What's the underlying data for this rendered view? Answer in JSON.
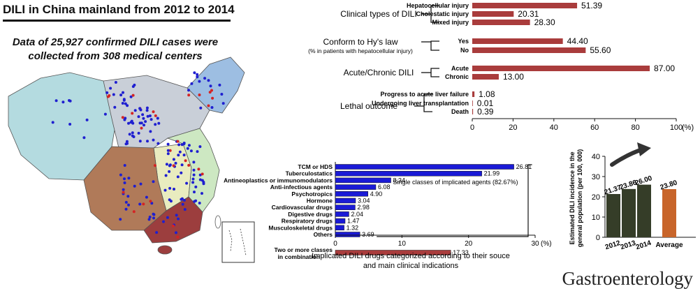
{
  "header": {
    "title": "DILI in China mainland from 2012 to 2014",
    "subtitle_line1": "Data of  25,927 confirmed DILI cases were",
    "subtitle_line2": "collected from 308 medical centers"
  },
  "journal": "Gastroenterology",
  "map": {
    "region_colors": {
      "northwest": "#b4dbe0",
      "north": "#c9cfd8",
      "northeast": "#9dbee2",
      "east": "#cde8c2",
      "southwest": "#b07a59",
      "south": "#9c3e3e",
      "central": "#e9ecbf"
    },
    "marker_colors": {
      "site": "#1f1fd0",
      "highlight": "#d42424"
    }
  },
  "chart_data": [
    {
      "type": "bar",
      "orientation": "horizontal",
      "bar_color": "#a93c3c",
      "xlim": [
        0,
        100
      ],
      "x_ticks": [
        "0",
        "20",
        "40",
        "60",
        "80",
        "100"
      ],
      "x_unit": "(%)",
      "groups": [
        {
          "label": "Clinical types of DILI",
          "bars": [
            {
              "label": "Hepatocellular injury",
              "value": 51.39,
              "value_label": "51.39"
            },
            {
              "label": "Cholestatic injury",
              "value": 20.31,
              "value_label": "20.31"
            },
            {
              "label": "Mixed injury",
              "value": 28.3,
              "value_label": "28.30"
            }
          ]
        },
        {
          "label": "Conform to Hy's law",
          "sublabel": "(% in patients with hepatocellular injury)",
          "bars": [
            {
              "label": "Yes",
              "value": 44.4,
              "value_label": "44.40"
            },
            {
              "label": "No",
              "value": 55.6,
              "value_label": "55.60"
            }
          ]
        },
        {
          "label": "Acute/Chronic DILI",
          "bars": [
            {
              "label": "Acute",
              "value": 87.0,
              "value_label": "87.00"
            },
            {
              "label": "Chronic",
              "value": 13.0,
              "value_label": "13.00"
            }
          ]
        },
        {
          "label": "Lethal outcome",
          "bars": [
            {
              "label": "Progress to acute liver failure",
              "value": 1.08,
              "value_label": "1.08"
            },
            {
              "label": "Undergoing liver transplantation",
              "value": 0.01,
              "value_label": "0.01"
            },
            {
              "label": "Death",
              "value": 0.39,
              "value_label": "0.39"
            }
          ]
        }
      ]
    },
    {
      "type": "bar",
      "orientation": "horizontal",
      "xlim": [
        0,
        30
      ],
      "x_ticks": [
        "0",
        "10",
        "20",
        "30"
      ],
      "x_unit": "(%)",
      "caption_line1": "Implicated DILI drugs categorized according to their souce",
      "caption_line2": "and main clinical indications",
      "bracket_label": "Single classes of implicated agents (82.67%)",
      "colors": {
        "single": "#1a1ad6",
        "combination": "#a93c3c"
      },
      "bars": [
        {
          "label": "TCM or HDS",
          "value": 26.81,
          "value_label": "26.81",
          "kind": "single"
        },
        {
          "label": "Tuberculostatics",
          "value": 21.99,
          "value_label": "21.99",
          "kind": "single"
        },
        {
          "label": "Antineoplastics or immunomodulators",
          "value": 8.34,
          "value_label": "8.34",
          "kind": "single"
        },
        {
          "label": "Anti-infectious agents",
          "value": 6.08,
          "value_label": "6.08",
          "kind": "single"
        },
        {
          "label": "Psychotropics",
          "value": 4.9,
          "value_label": "4.90",
          "kind": "single"
        },
        {
          "label": "Hormone",
          "value": 3.04,
          "value_label": "3.04",
          "kind": "single"
        },
        {
          "label": "Cardiovascular drugs",
          "value": 2.98,
          "value_label": "2.98",
          "kind": "single"
        },
        {
          "label": "Digestive drugs",
          "value": 2.04,
          "value_label": "2.04",
          "kind": "single"
        },
        {
          "label": "Respiratory drugs",
          "value": 1.47,
          "value_label": "1.47",
          "kind": "single"
        },
        {
          "label": "Musculoskeletal drugs",
          "value": 1.32,
          "value_label": "1.32",
          "kind": "single"
        },
        {
          "label": "Others",
          "value": 3.69,
          "value_label": "3.69",
          "kind": "single"
        },
        {
          "label_line1": "Two or more classes",
          "label_line2": "in combination",
          "value": 17.33,
          "value_label": "17.33",
          "kind": "combination"
        }
      ]
    },
    {
      "type": "bar",
      "orientation": "vertical",
      "ylim": [
        0,
        40
      ],
      "y_ticks": [
        "0",
        "10",
        "20",
        "30",
        "40"
      ],
      "ylabel_line1": "Estimated DILI incidence in the",
      "ylabel_line2": "general population (per 100, 000)",
      "trend_arrow": "up",
      "colors": {
        "year": "#353d28",
        "average": "#c8652a"
      },
      "categories": [
        "2012",
        "2013",
        "2014",
        "Average"
      ],
      "values": [
        21.37,
        23.86,
        26.0,
        23.8
      ],
      "value_labels": [
        "21.37",
        "23.86",
        "26.00",
        "23.80"
      ]
    }
  ]
}
